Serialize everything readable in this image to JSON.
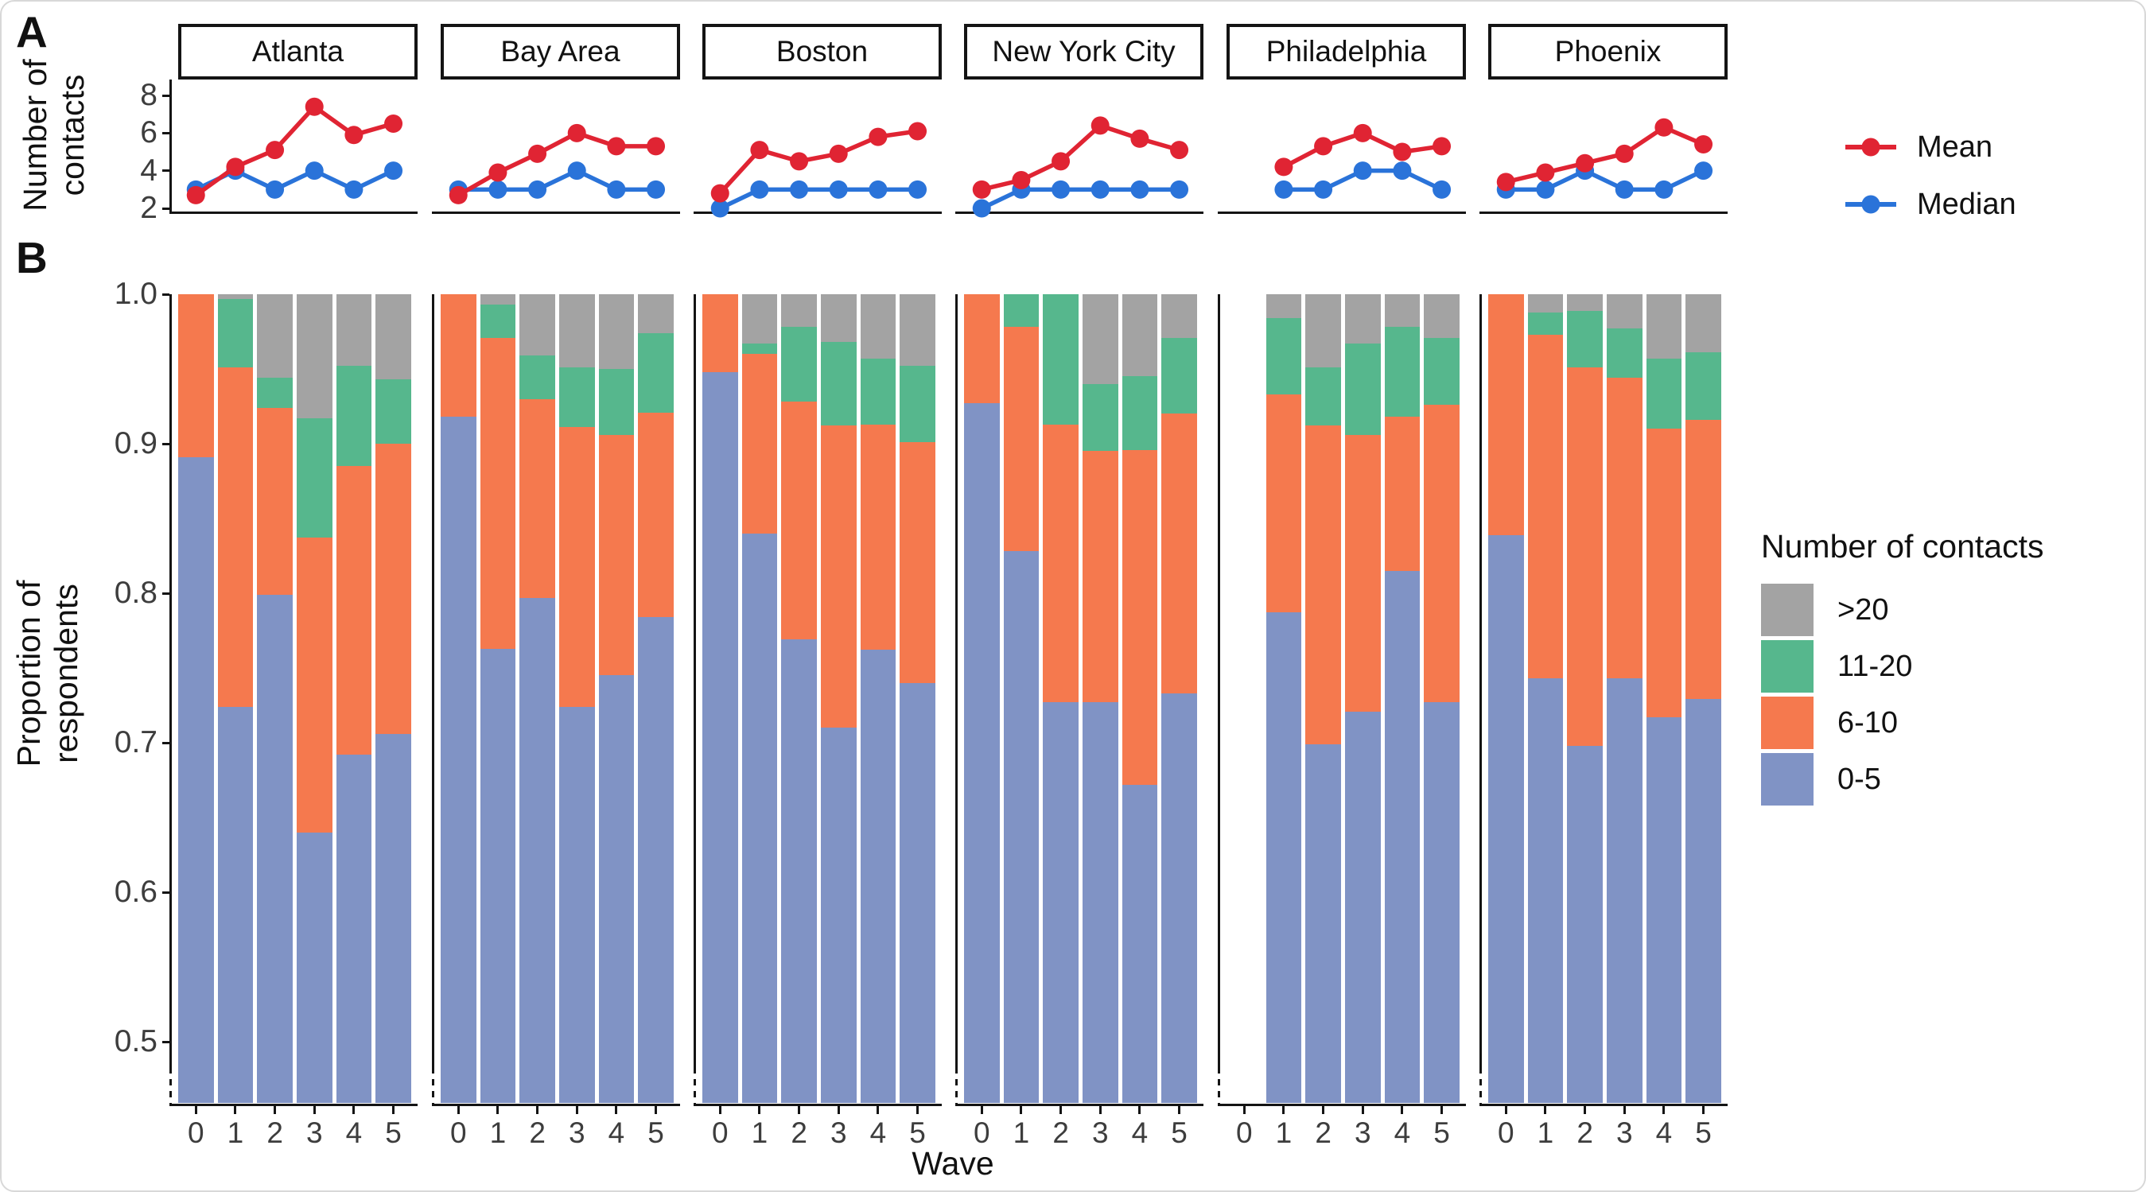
{
  "figure": {
    "panel_a_label": "A",
    "panel_b_label": "B"
  },
  "colors": {
    "mean_line": "#e02433",
    "median_line": "#2a73d9",
    "cat_over20": "#a3a3a3",
    "cat_11_20": "#56b78d",
    "cat_6_10": "#f5794e",
    "cat_0_5": "#8093c5",
    "axis": "#141414",
    "tick_text": "#3d3d3d"
  },
  "chart_data": [
    {
      "type": "line",
      "panel": "A",
      "ylabel": [
        "Number of",
        "contacts"
      ],
      "yticks": [
        8,
        6,
        4,
        2
      ],
      "ylim": [
        1.7,
        8.8
      ],
      "x": [
        0,
        1,
        2,
        3,
        4,
        5
      ],
      "legend": [
        {
          "label": "Mean",
          "color": "#e02433"
        },
        {
          "label": "Median",
          "color": "#2a73d9"
        }
      ],
      "facets": [
        {
          "name": "Atlanta",
          "mean": [
            2.7,
            4.2,
            5.1,
            7.4,
            5.9,
            6.5
          ],
          "median": [
            3,
            4,
            3,
            4,
            3,
            4
          ]
        },
        {
          "name": "Bay Area",
          "mean": [
            2.7,
            3.9,
            4.9,
            6.0,
            5.3,
            5.3
          ],
          "median": [
            3,
            3,
            3,
            4,
            3,
            3
          ]
        },
        {
          "name": "Boston",
          "mean": [
            2.8,
            5.1,
            4.5,
            4.9,
            5.8,
            6.1
          ],
          "median": [
            2,
            3,
            3,
            3,
            3,
            3
          ]
        },
        {
          "name": "New York City",
          "mean": [
            3.0,
            3.5,
            4.5,
            6.4,
            5.7,
            5.1
          ],
          "median": [
            2,
            3,
            3,
            3,
            3,
            3
          ]
        },
        {
          "name": "Philadelphia",
          "mean": [
            null,
            4.2,
            5.3,
            6.0,
            5.0,
            5.3
          ],
          "median": [
            null,
            3,
            3,
            4,
            4,
            3
          ]
        },
        {
          "name": "Phoenix",
          "mean": [
            3.4,
            3.9,
            4.4,
            4.9,
            6.3,
            5.4
          ],
          "median": [
            3,
            3,
            4,
            3,
            3,
            4
          ]
        }
      ]
    },
    {
      "type": "bar",
      "stacked": true,
      "panel": "B",
      "ylabel": [
        "Proportion of",
        "respondents"
      ],
      "xlabel": "Wave",
      "yticks": [
        1.0,
        0.9,
        0.8,
        0.7,
        0.6,
        0.5
      ],
      "ylim": [
        0.46,
        1.0
      ],
      "x": [
        0,
        1,
        2,
        3,
        4,
        5
      ],
      "legend_title": "Number of contacts",
      "legend": [
        {
          "label": ">20",
          "color": "#a3a3a3"
        },
        {
          "label": "11-20",
          "color": "#56b78d"
        },
        {
          "label": "6-10",
          "color": "#f5794e"
        },
        {
          "label": "0-5",
          "color": "#8093c5"
        }
      ],
      "categories_bottom_to_top": [
        "0-5",
        "6-10",
        "11-20",
        ">20"
      ],
      "stack_colors_bottom_to_top": [
        "#8093c5",
        "#f5794e",
        "#56b78d",
        "#a3a3a3"
      ],
      "facets": [
        {
          "name": "Atlanta",
          "cumulative_tops": [
            [
              0.891,
              1.0,
              1.0,
              1.0
            ],
            [
              0.724,
              0.951,
              0.997,
              1.0
            ],
            [
              0.799,
              0.924,
              0.944,
              1.0
            ],
            [
              0.64,
              0.837,
              0.917,
              1.0
            ],
            [
              0.692,
              0.885,
              0.952,
              1.0
            ],
            [
              0.706,
              0.9,
              0.943,
              1.0
            ]
          ]
        },
        {
          "name": "Bay Area",
          "cumulative_tops": [
            [
              0.918,
              1.0,
              1.0,
              1.0
            ],
            [
              0.763,
              0.971,
              0.993,
              1.0
            ],
            [
              0.797,
              0.93,
              0.959,
              1.0
            ],
            [
              0.724,
              0.911,
              0.951,
              1.0
            ],
            [
              0.745,
              0.906,
              0.95,
              1.0
            ],
            [
              0.784,
              0.921,
              0.974,
              1.0
            ]
          ]
        },
        {
          "name": "Boston",
          "cumulative_tops": [
            [
              0.948,
              1.0,
              1.0,
              1.0
            ],
            [
              0.84,
              0.96,
              0.967,
              1.0
            ],
            [
              0.769,
              0.928,
              0.978,
              1.0
            ],
            [
              0.71,
              0.912,
              0.968,
              1.0
            ],
            [
              0.762,
              0.913,
              0.957,
              1.0
            ],
            [
              0.74,
              0.901,
              0.952,
              1.0
            ]
          ]
        },
        {
          "name": "New York City",
          "cumulative_tops": [
            [
              0.927,
              1.0,
              1.0,
              1.0
            ],
            [
              0.828,
              0.978,
              1.0,
              1.0
            ],
            [
              0.727,
              0.913,
              1.0,
              1.0
            ],
            [
              0.727,
              0.895,
              0.94,
              1.0
            ],
            [
              0.672,
              0.896,
              0.945,
              1.0
            ],
            [
              0.733,
              0.92,
              0.971,
              1.0
            ]
          ]
        },
        {
          "name": "Philadelphia",
          "cumulative_tops": [
            null,
            [
              0.787,
              0.933,
              0.984,
              1.0
            ],
            [
              0.699,
              0.912,
              0.951,
              1.0
            ],
            [
              0.721,
              0.906,
              0.967,
              1.0
            ],
            [
              0.815,
              0.918,
              0.978,
              1.0
            ],
            [
              0.727,
              0.926,
              0.971,
              1.0
            ]
          ]
        },
        {
          "name": "Phoenix",
          "cumulative_tops": [
            [
              0.839,
              1.0,
              1.0,
              1.0
            ],
            [
              0.743,
              0.973,
              0.988,
              1.0
            ],
            [
              0.698,
              0.951,
              0.989,
              1.0
            ],
            [
              0.743,
              0.944,
              0.977,
              1.0
            ],
            [
              0.717,
              0.91,
              0.957,
              1.0
            ],
            [
              0.729,
              0.916,
              0.961,
              1.0
            ]
          ]
        }
      ]
    }
  ]
}
